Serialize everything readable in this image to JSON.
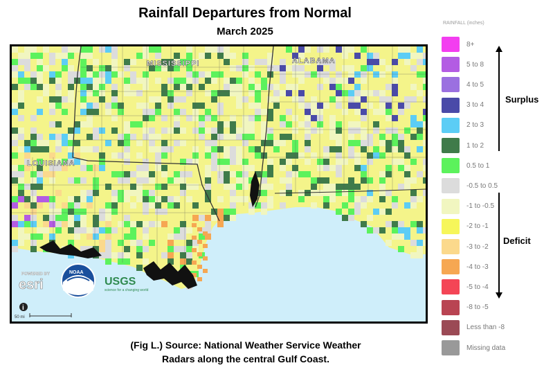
{
  "title": "Rainfall Departures from Normal",
  "subtitle": "March 2025",
  "caption_line1": "(Fig L.) Source: National Weather Service Weather",
  "caption_line2": "Radars along the central Gulf Coast.",
  "map": {
    "state_labels": [
      "MISSISSIPPI",
      "ALABAMA",
      "LOUISIANA"
    ],
    "scale_label": "50 mi",
    "info_button": "i",
    "logos": {
      "esri_small": "POWERED BY",
      "esri": "esri",
      "noaa": "NOAA",
      "usgs": "USGS",
      "usgs_tagline": "science for a changing world"
    }
  },
  "legend": {
    "title": "RAINFALL (inches)",
    "items": [
      {
        "label": "8+",
        "color": "#f33ef0"
      },
      {
        "label": "5 to 8",
        "color": "#b35ce3"
      },
      {
        "label": "4 to 5",
        "color": "#9b70e0"
      },
      {
        "label": "3 to 4",
        "color": "#4a4aa8"
      },
      {
        "label": "2 to 3",
        "color": "#5ccdf5"
      },
      {
        "label": "1 to 2",
        "color": "#3f7b4a"
      },
      {
        "label": "0.5 to 1",
        "color": "#5cf25c"
      },
      {
        "label": "-0.5 to 0.5",
        "color": "#dcdcdc"
      },
      {
        "label": "-1 to -0.5",
        "color": "#f1f6c0"
      },
      {
        "label": "-2 to -1",
        "color": "#f6f65a"
      },
      {
        "label": "-3 to -2",
        "color": "#fbd98c"
      },
      {
        "label": "-4 to -3",
        "color": "#f6a752"
      },
      {
        "label": "-5 to -4",
        "color": "#f44556"
      },
      {
        "label": "-8 to -5",
        "color": "#b94452"
      },
      {
        "label": "Less than -8",
        "color": "#9b4a55"
      },
      {
        "label": "Missing data",
        "color": "#999999"
      }
    ],
    "surplus_label": "Surplus",
    "deficit_label": "Deficit"
  }
}
